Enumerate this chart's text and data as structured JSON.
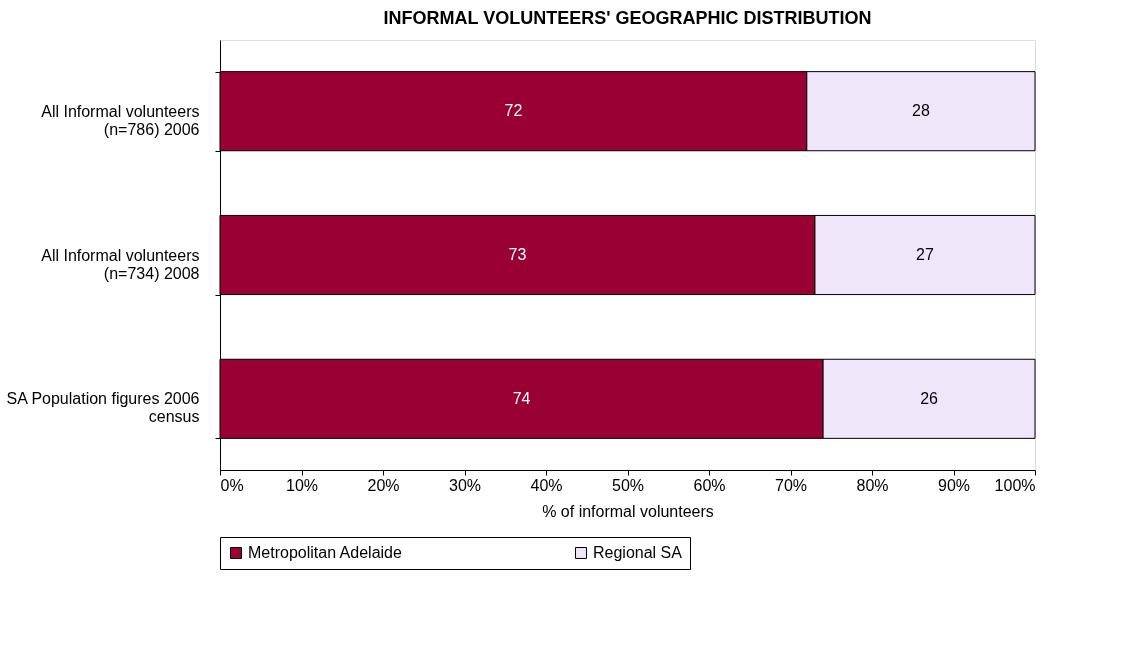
{
  "chart_data": {
    "type": "bar",
    "orientation": "horizontal",
    "stacked": true,
    "title": "INFORMAL VOLUNTEERS' GEOGRAPHIC DISTRIBUTION",
    "categories": [
      "All Informal volunteers\n(n=786) 2006",
      "All Informal volunteers\n(n=734) 2008",
      "SA Population figures 2006\ncensus"
    ],
    "series": [
      {
        "name": "Metropolitan Adelaide",
        "color": "#990033",
        "values": [
          72,
          73,
          74
        ]
      },
      {
        "name": "Regional SA",
        "color": "#f0e6fa",
        "values": [
          28,
          27,
          26
        ]
      }
    ],
    "xlabel": "% of informal volunteers",
    "xlim": [
      0,
      100
    ],
    "xticks": [
      {
        "value": 0,
        "label": "0%"
      },
      {
        "value": 10,
        "label": "10%"
      },
      {
        "value": 20,
        "label": "20%"
      },
      {
        "value": 30,
        "label": "30%"
      },
      {
        "value": 40,
        "label": "40%"
      },
      {
        "value": 50,
        "label": "50%"
      },
      {
        "value": 60,
        "label": "60%"
      },
      {
        "value": 70,
        "label": "70%"
      },
      {
        "value": 80,
        "label": "80%"
      },
      {
        "value": 90,
        "label": "90%"
      },
      {
        "value": 100,
        "label": "100%"
      }
    ],
    "data_labels": true,
    "grid": false,
    "legend": "bottom"
  }
}
